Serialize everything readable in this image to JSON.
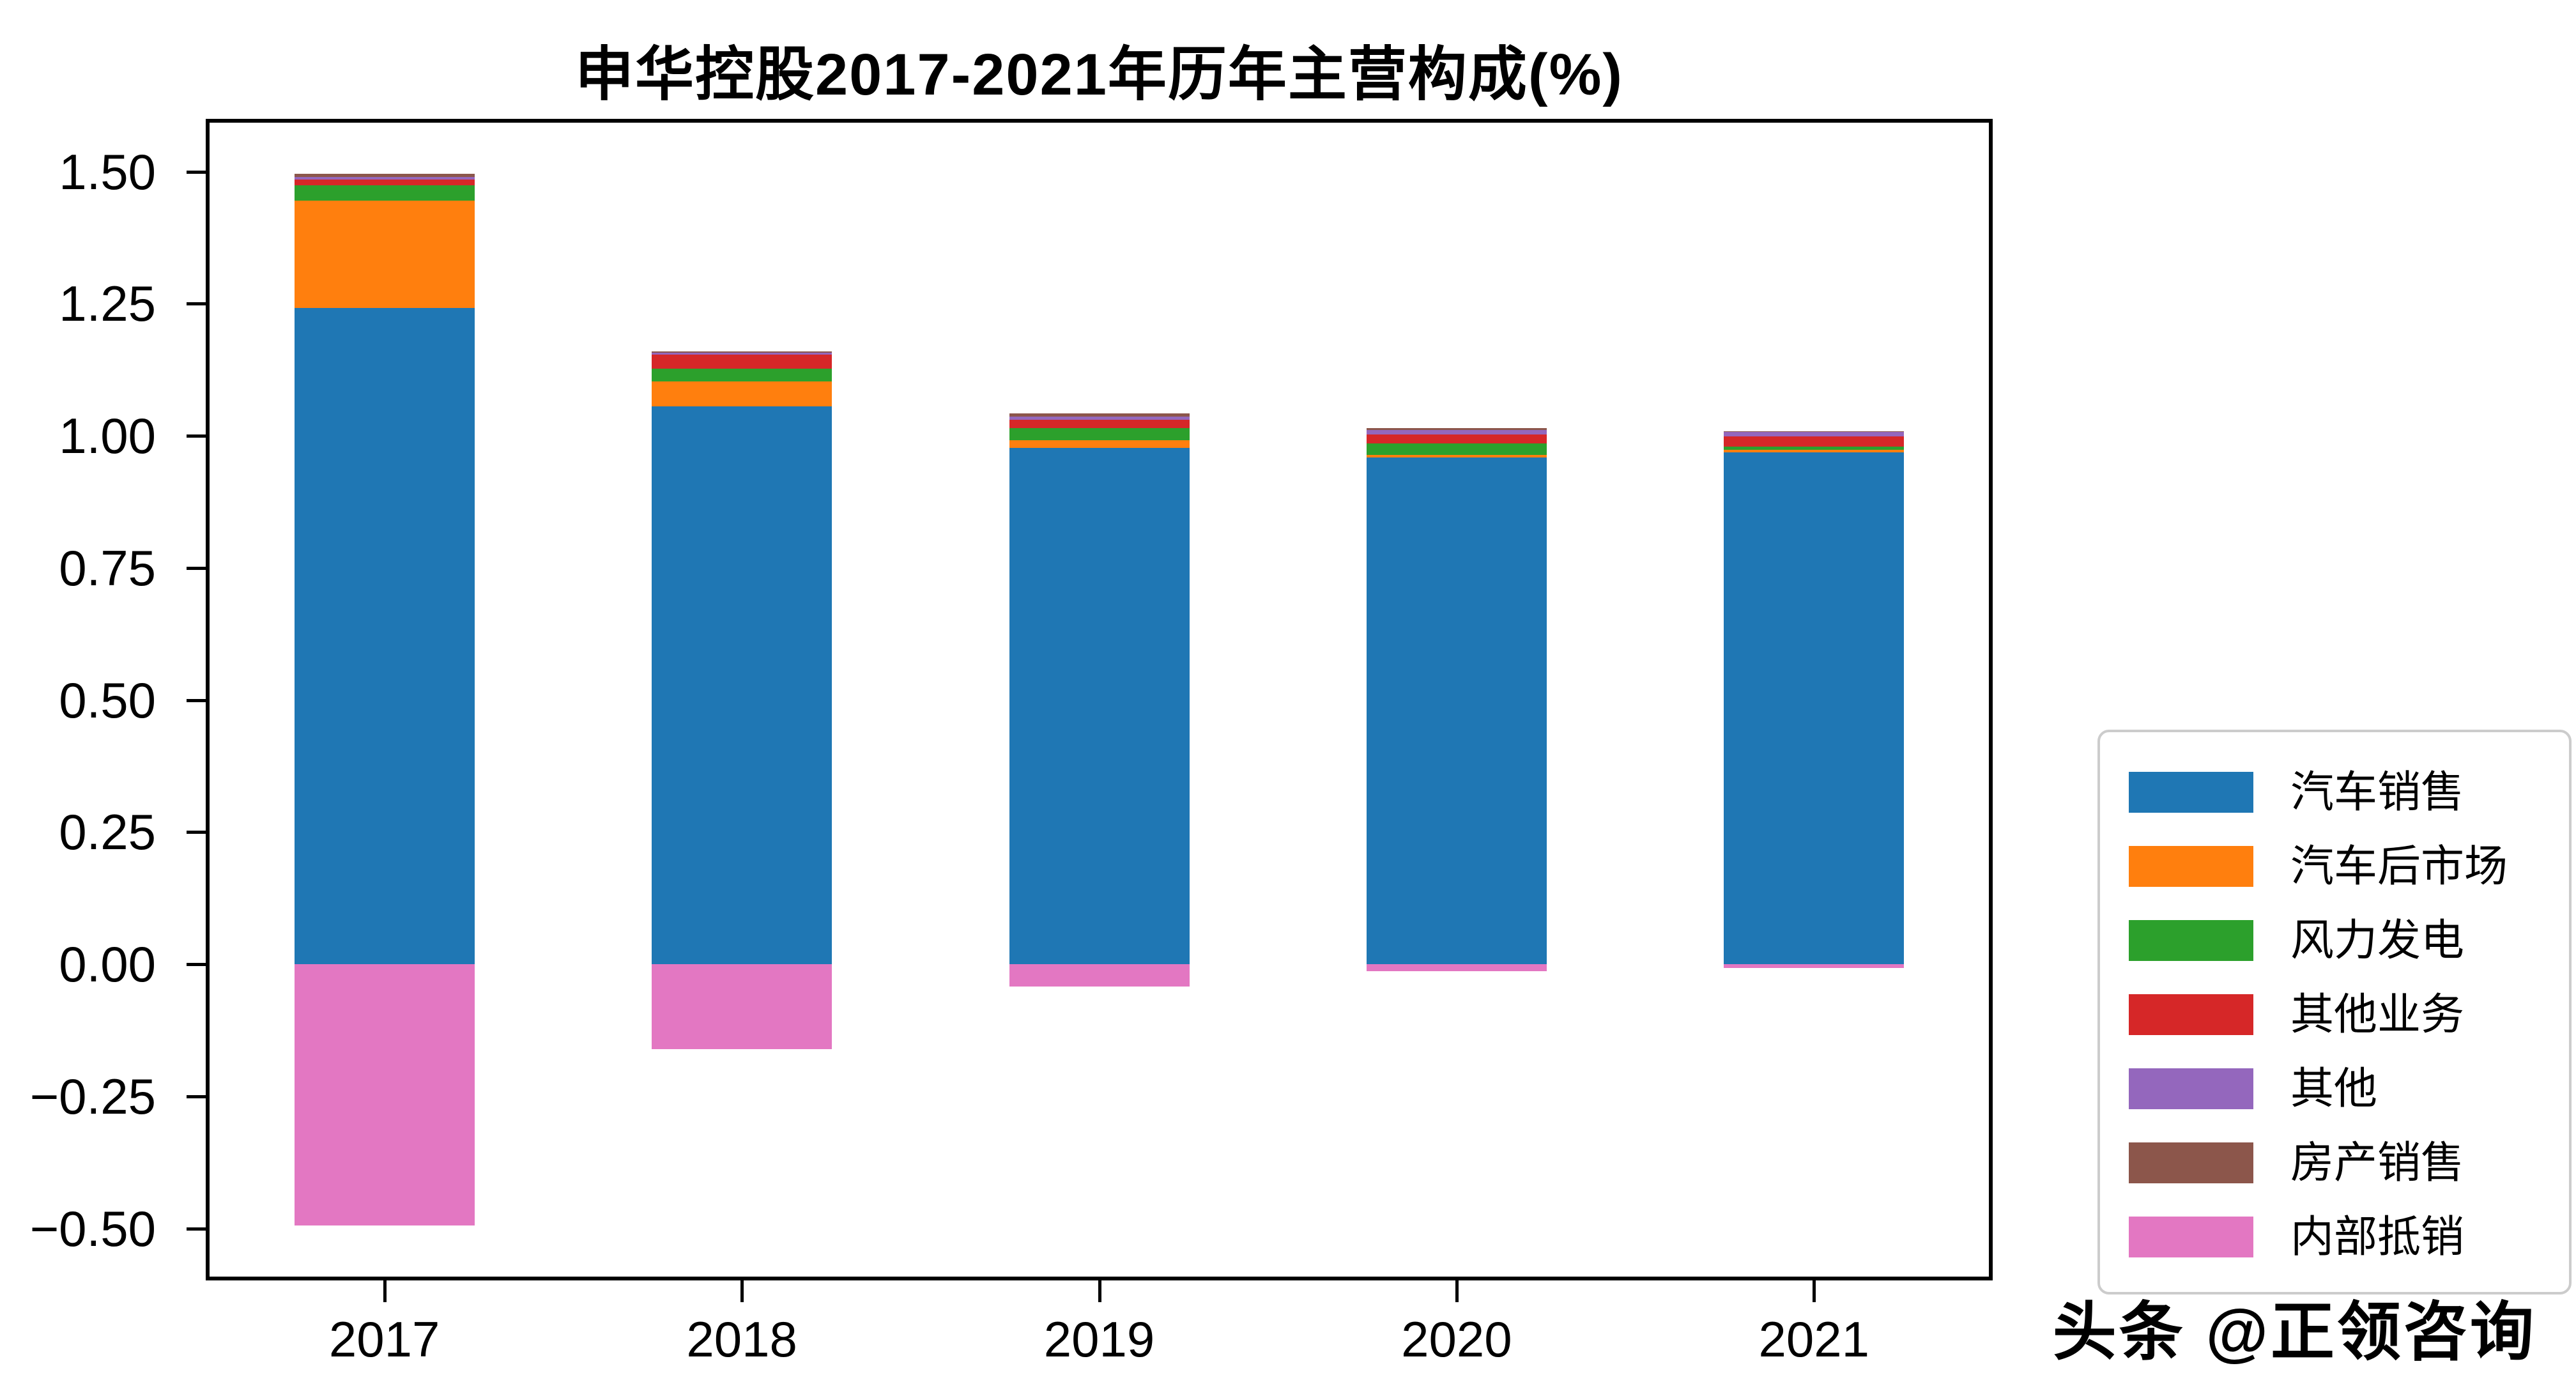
{
  "watermark": {
    "text": "头条 @正领咨询"
  },
  "chart_data": {
    "type": "bar",
    "stacked": true,
    "title": "申华控股2017-2021年历年主营构成(%)",
    "categories": [
      "2017",
      "2018",
      "2019",
      "2020",
      "2021"
    ],
    "series": [
      {
        "name": "汽车销售",
        "color": "#1f77b4",
        "values": [
          1.242,
          1.056,
          0.977,
          0.959,
          0.968
        ]
      },
      {
        "name": "汽车后市场",
        "color": "#ff7f0e",
        "values": [
          0.203,
          0.047,
          0.015,
          0.005,
          0.005
        ]
      },
      {
        "name": "风力发电",
        "color": "#2ca02c",
        "values": [
          0.029,
          0.024,
          0.022,
          0.022,
          0.006
        ]
      },
      {
        "name": "其他业务",
        "color": "#d62728",
        "values": [
          0.011,
          0.026,
          0.016,
          0.016,
          0.02
        ]
      },
      {
        "name": "其他",
        "color": "#9467bd",
        "values": [
          0.005,
          0.004,
          0.006,
          0.009,
          0.008
        ]
      },
      {
        "name": "房产销售",
        "color": "#8c564b",
        "values": [
          0.006,
          0.003,
          0.006,
          0.003,
          0.001
        ]
      },
      {
        "name": "内部抵销",
        "color": "#e377c2",
        "values": [
          -0.495,
          -0.161,
          -0.042,
          -0.013,
          -0.007
        ]
      }
    ],
    "ylim": [
      -0.597,
      1.6
    ],
    "yticks": {
      "values": [
        1.5,
        1.25,
        1.0,
        0.75,
        0.5,
        0.25,
        0.0,
        -0.25,
        -0.5
      ],
      "labels": [
        "1.50",
        "1.25",
        "1.00",
        "0.75",
        "0.50",
        "0.25",
        "0.00",
        "−0.25",
        "−0.50"
      ]
    },
    "legend_position": "right",
    "grid": false
  }
}
